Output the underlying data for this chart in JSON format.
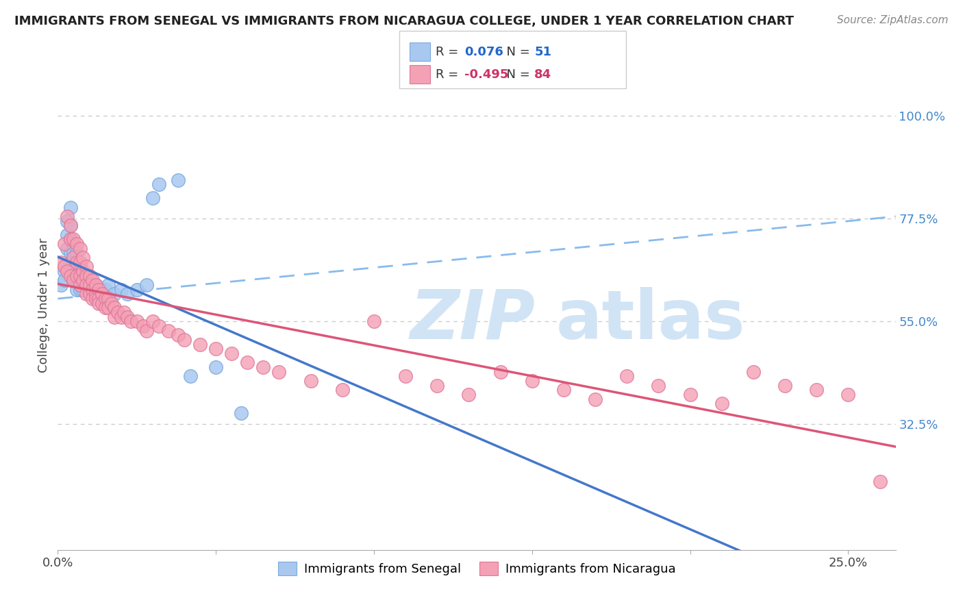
{
  "title": "IMMIGRANTS FROM SENEGAL VS IMMIGRANTS FROM NICARAGUA COLLEGE, UNDER 1 YEAR CORRELATION CHART",
  "source": "Source: ZipAtlas.com",
  "ylabel": "College, Under 1 year",
  "color_senegal": "#a8c8f0",
  "color_nicaragua": "#f4a0b5",
  "trendline_senegal_solid_color": "#4477cc",
  "trendline_senegal_dash_color": "#88bbee",
  "trendline_nicaragua_color": "#dd5577",
  "background_color": "#ffffff",
  "xlim": [
    0.0,
    0.265
  ],
  "ylim": [
    0.05,
    1.12
  ],
  "x_tick_positions": [
    0.0,
    0.05,
    0.1,
    0.15,
    0.2,
    0.25
  ],
  "x_tick_labels": [
    "0.0%",
    "",
    "",
    "",
    "",
    "25.0%"
  ],
  "y_tick_positions": [
    0.325,
    0.55,
    0.775,
    1.0
  ],
  "y_tick_labels": [
    "32.5%",
    "55.0%",
    "77.5%",
    "100.0%"
  ],
  "grid_color": "#cccccc",
  "watermark_color": "#d0e4f5",
  "legend_r1": "0.076",
  "legend_n1": "51",
  "legend_r2": "-0.495",
  "legend_n2": "84",
  "senegal_x": [
    0.001,
    0.002,
    0.002,
    0.003,
    0.003,
    0.003,
    0.004,
    0.004,
    0.004,
    0.004,
    0.004,
    0.005,
    0.005,
    0.005,
    0.005,
    0.005,
    0.006,
    0.006,
    0.006,
    0.006,
    0.006,
    0.007,
    0.007,
    0.007,
    0.007,
    0.008,
    0.008,
    0.008,
    0.009,
    0.009,
    0.01,
    0.01,
    0.011,
    0.011,
    0.012,
    0.012,
    0.013,
    0.014,
    0.015,
    0.016,
    0.018,
    0.02,
    0.022,
    0.025,
    0.028,
    0.03,
    0.032,
    0.038,
    0.042,
    0.05,
    0.058
  ],
  "senegal_y": [
    0.63,
    0.66,
    0.64,
    0.77,
    0.74,
    0.71,
    0.8,
    0.76,
    0.73,
    0.7,
    0.68,
    0.72,
    0.7,
    0.68,
    0.66,
    0.64,
    0.7,
    0.68,
    0.66,
    0.64,
    0.62,
    0.67,
    0.65,
    0.63,
    0.62,
    0.65,
    0.63,
    0.62,
    0.64,
    0.63,
    0.63,
    0.62,
    0.63,
    0.62,
    0.63,
    0.61,
    0.62,
    0.62,
    0.62,
    0.63,
    0.61,
    0.62,
    0.61,
    0.62,
    0.63,
    0.82,
    0.85,
    0.86,
    0.43,
    0.45,
    0.35
  ],
  "nicaragua_x": [
    0.001,
    0.002,
    0.002,
    0.003,
    0.003,
    0.004,
    0.004,
    0.004,
    0.005,
    0.005,
    0.005,
    0.006,
    0.006,
    0.006,
    0.007,
    0.007,
    0.007,
    0.007,
    0.008,
    0.008,
    0.008,
    0.009,
    0.009,
    0.009,
    0.009,
    0.01,
    0.01,
    0.01,
    0.011,
    0.011,
    0.011,
    0.012,
    0.012,
    0.012,
    0.013,
    0.013,
    0.013,
    0.014,
    0.014,
    0.015,
    0.015,
    0.016,
    0.016,
    0.017,
    0.018,
    0.018,
    0.019,
    0.02,
    0.021,
    0.022,
    0.023,
    0.025,
    0.027,
    0.028,
    0.03,
    0.032,
    0.035,
    0.038,
    0.04,
    0.045,
    0.05,
    0.055,
    0.06,
    0.065,
    0.07,
    0.08,
    0.09,
    0.1,
    0.11,
    0.12,
    0.13,
    0.14,
    0.15,
    0.16,
    0.17,
    0.18,
    0.19,
    0.2,
    0.21,
    0.22,
    0.23,
    0.24,
    0.25,
    0.26
  ],
  "nicaragua_y": [
    0.68,
    0.72,
    0.67,
    0.78,
    0.66,
    0.76,
    0.73,
    0.65,
    0.73,
    0.69,
    0.64,
    0.72,
    0.68,
    0.65,
    0.71,
    0.68,
    0.65,
    0.63,
    0.69,
    0.66,
    0.64,
    0.67,
    0.65,
    0.63,
    0.61,
    0.65,
    0.63,
    0.61,
    0.64,
    0.62,
    0.6,
    0.63,
    0.61,
    0.6,
    0.62,
    0.6,
    0.59,
    0.61,
    0.59,
    0.6,
    0.58,
    0.6,
    0.58,
    0.59,
    0.58,
    0.56,
    0.57,
    0.56,
    0.57,
    0.56,
    0.55,
    0.55,
    0.54,
    0.53,
    0.55,
    0.54,
    0.53,
    0.52,
    0.51,
    0.5,
    0.49,
    0.48,
    0.46,
    0.45,
    0.44,
    0.42,
    0.4,
    0.55,
    0.43,
    0.41,
    0.39,
    0.44,
    0.42,
    0.4,
    0.38,
    0.43,
    0.41,
    0.39,
    0.37,
    0.44,
    0.41,
    0.4,
    0.39,
    0.2
  ]
}
